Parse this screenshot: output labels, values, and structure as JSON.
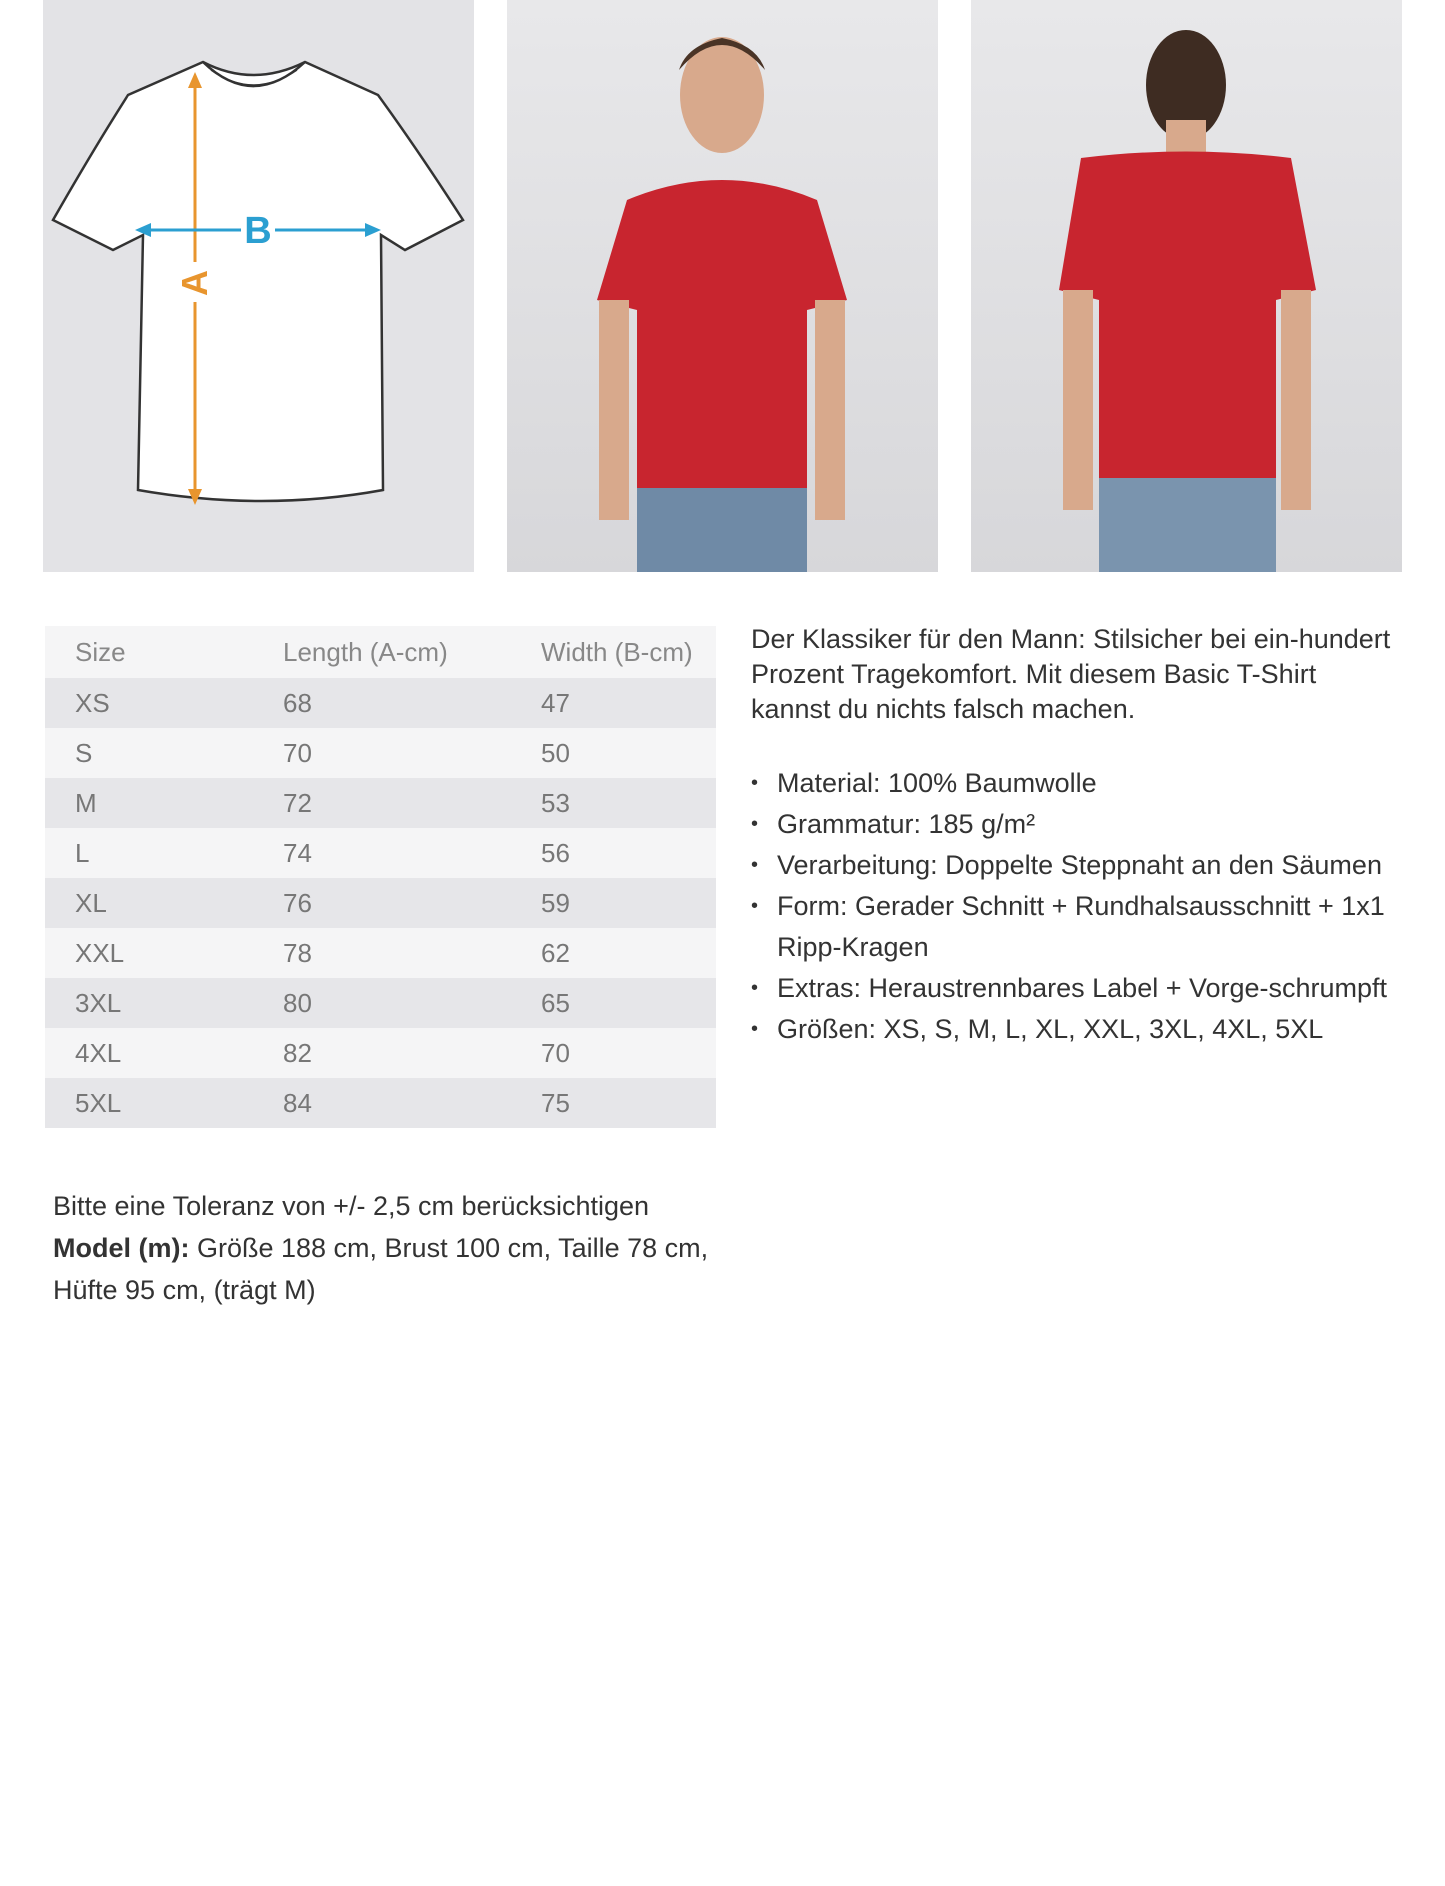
{
  "diagram": {
    "label_a": "A",
    "label_b": "B",
    "color_a": "#e8952e",
    "color_b": "#2b9fd1"
  },
  "photos": {
    "shirt_color": "#c8252f",
    "front": "model-front",
    "back": "model-back"
  },
  "size_table": {
    "headers": [
      "Size",
      "Length (A-cm)",
      "Width (B-cm)"
    ],
    "rows": [
      [
        "XS",
        "68",
        "47"
      ],
      [
        "S",
        "70",
        "50"
      ],
      [
        "M",
        "72",
        "53"
      ],
      [
        "L",
        "74",
        "56"
      ],
      [
        "XL",
        "76",
        "59"
      ],
      [
        "XXL",
        "78",
        "62"
      ],
      [
        "3XL",
        "80",
        "65"
      ],
      [
        "4XL",
        "82",
        "70"
      ],
      [
        "5XL",
        "84",
        "75"
      ]
    ]
  },
  "description": "Der Klassiker für den Mann: Stilsicher bei ein-hundert Prozent Tragekomfort. Mit diesem Basic T-Shirt kannst du nichts falsch machen.",
  "features": [
    "Material: 100% Baumwolle",
    "Grammatur: 185 g/m²",
    "Verarbeitung: Doppelte Steppnaht an den Säumen",
    "Form: Gerader Schnitt + Rundhalsausschnitt + 1x1 Ripp-Kragen",
    "Extras: Heraustrennbares Label + Vorge-schrumpft",
    "Größen: XS, S, M, L, XL, XXL, 3XL, 4XL, 5XL"
  ],
  "note": {
    "tolerance": "Bitte eine Toleranz von +/- 2,5 cm berücksichtigen",
    "model_label": "Model (m):",
    "model_text": " Größe 188 cm, Brust 100 cm, Taille 78 cm, Hüfte 95 cm, (trägt M)"
  }
}
